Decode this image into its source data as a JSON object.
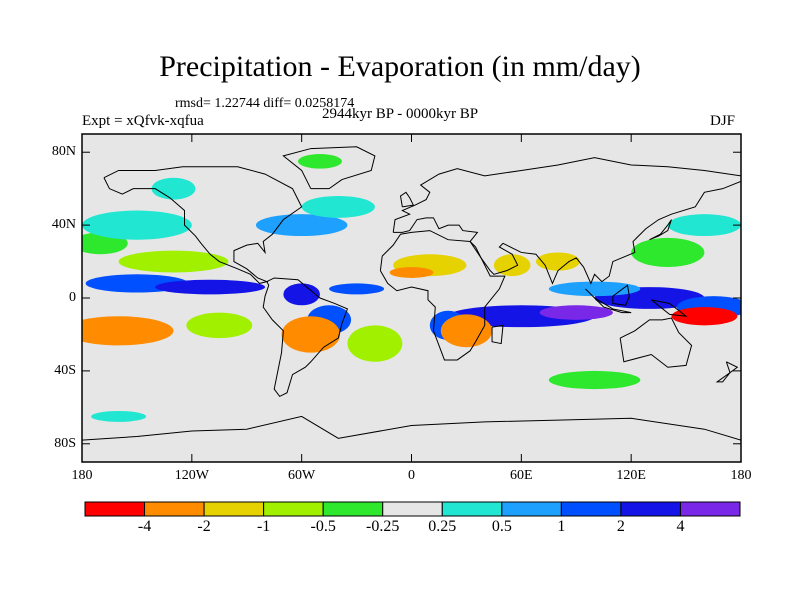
{
  "title": "Precipitation - Evaporation (in mm/day)",
  "stats_text": "rmsd= 1.22744 diff= 0.0258174",
  "experiment": "Expt = xQfvk-xqfua",
  "period": "2944kyr BP - 0000kyr BP",
  "season": "DJF",
  "map": {
    "projection": "cylindrical-equidistant",
    "lon_range": [
      -180,
      180
    ],
    "lat_range": [
      -90,
      90
    ],
    "y_tick_labels": [
      {
        "value": 80,
        "label": "80N"
      },
      {
        "value": 40,
        "label": "40N"
      },
      {
        "value": 0,
        "label": "0"
      },
      {
        "value": -40,
        "label": "40S"
      },
      {
        "value": -80,
        "label": "80S"
      }
    ],
    "x_tick_labels": [
      {
        "value": -180,
        "label": "180"
      },
      {
        "value": -120,
        "label": "120W"
      },
      {
        "value": -60,
        "label": "60W"
      },
      {
        "value": 0,
        "label": "0"
      },
      {
        "value": 60,
        "label": "60E"
      },
      {
        "value": 120,
        "label": "120E"
      },
      {
        "value": 180,
        "label": "180"
      }
    ],
    "background_color": "#e6e6e6",
    "coastline_color": "#000000"
  },
  "colorbar": {
    "colors": [
      "#ff0000",
      "#ff8c00",
      "#e6d200",
      "#a0f000",
      "#2ee82e",
      "#e6e6e6",
      "#20e6d2",
      "#1ea0ff",
      "#0050ff",
      "#1414e6",
      "#7828e6"
    ],
    "labels": [
      "-4",
      "-2",
      "-1",
      "-0.5",
      "-0.25",
      "0.25",
      "0.5",
      "1",
      "2",
      "4"
    ]
  }
}
